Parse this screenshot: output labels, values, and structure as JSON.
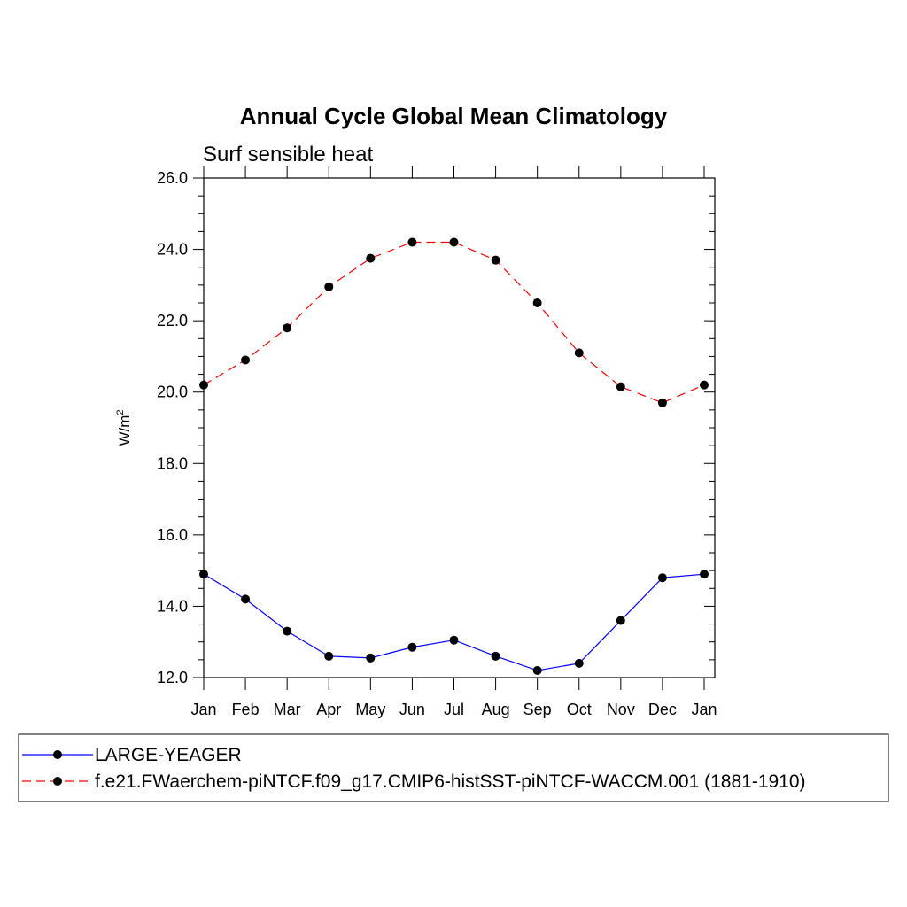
{
  "chart_data": {
    "type": "line",
    "title": "Annual Cycle Global Mean Climatology",
    "subtitle": "Surf sensible heat",
    "xlabel": "",
    "ylabel": "W/m",
    "ylabel_superscript": "2",
    "categories": [
      "Jan",
      "Feb",
      "Mar",
      "Apr",
      "May",
      "Jun",
      "Jul",
      "Aug",
      "Sep",
      "Oct",
      "Nov",
      "Dec",
      "Jan"
    ],
    "ylim": [
      12.0,
      26.0
    ],
    "yticks": [
      12.0,
      14.0,
      16.0,
      18.0,
      20.0,
      22.0,
      24.0,
      26.0
    ],
    "ytick_labels": [
      "12.0",
      "14.0",
      "16.0",
      "18.0",
      "20.0",
      "22.0",
      "24.0",
      "26.0"
    ],
    "grid": false,
    "legend_position": "bottom",
    "series": [
      {
        "name": "LARGE-YEAGER",
        "color": "#0000ff",
        "dashed": false,
        "values": [
          14.9,
          14.2,
          13.3,
          12.6,
          12.55,
          12.85,
          13.05,
          12.6,
          12.2,
          12.4,
          13.6,
          14.8,
          14.9
        ]
      },
      {
        "name": "f.e21.FWaerchem-piNTCF.f09_g17.CMIP6-histSST-piNTCF-WACCM.001 (1881-1910)",
        "color": "#ff0000",
        "dashed": true,
        "values": [
          20.2,
          20.9,
          21.8,
          22.95,
          23.75,
          24.2,
          24.2,
          23.7,
          22.5,
          21.1,
          20.15,
          19.7,
          20.2
        ]
      }
    ]
  }
}
